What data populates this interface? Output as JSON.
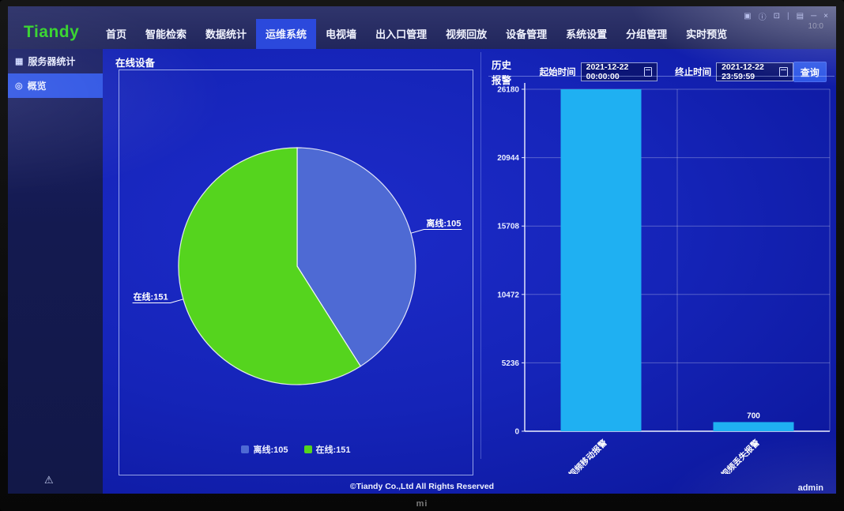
{
  "brand": {
    "name": "Tiandy",
    "logo_color": "#35d42c"
  },
  "nav": {
    "items": [
      {
        "label": "首页",
        "active": false
      },
      {
        "label": "智能检索",
        "active": false
      },
      {
        "label": "数据统计",
        "active": false
      },
      {
        "label": "运维系统",
        "active": true
      },
      {
        "label": "电视墙",
        "active": false
      },
      {
        "label": "出入口管理",
        "active": false
      },
      {
        "label": "视频回放",
        "active": false
      },
      {
        "label": "设备管理",
        "active": false
      },
      {
        "label": "系统设置",
        "active": false
      },
      {
        "label": "分组管理",
        "active": false
      },
      {
        "label": "实时预览",
        "active": false
      }
    ]
  },
  "system_tray": {
    "icons": [
      "display-icon",
      "info-icon",
      "fullscreen-icon",
      "separator",
      "lock-icon",
      "minimize-icon",
      "close-icon"
    ],
    "time": "10:0"
  },
  "sidebar": {
    "items": [
      {
        "label": "服务器统计",
        "icon": "server-stats-icon",
        "active": false
      },
      {
        "label": "概览",
        "icon": "overview-icon",
        "active": true
      }
    ]
  },
  "panels": {
    "online_devices": {
      "title": "在线设备"
    },
    "history_alarm": {
      "title": "历史报警",
      "start_time_label": "起始时间",
      "start_time_value": "2021-12-22 00:00:00",
      "end_time_label": "终止时间",
      "end_time_value": "2021-12-22 23:59:59",
      "query_button": "查询"
    }
  },
  "chart_data": [
    {
      "type": "pie",
      "title": "在线设备",
      "series": [
        {
          "name": "离线",
          "value": 105,
          "color": "#4e6ad4"
        },
        {
          "name": "在线",
          "value": 151,
          "color": "#55d41e"
        }
      ],
      "labels": [
        "离线:105",
        "在线:151"
      ],
      "legend": [
        "离线:105",
        "在线:151"
      ],
      "legend_position": "bottom",
      "start_angle": 90,
      "clockwise": true
    },
    {
      "type": "bar",
      "title": "历史报警",
      "categories": [
        "视频移动报警",
        "视频丢失报警"
      ],
      "values": [
        26180,
        700
      ],
      "value_labels": [
        "",
        "700"
      ],
      "bar_color": "#1fb0f2",
      "ylim": [
        0,
        26180
      ],
      "yticks": [
        0,
        5236,
        10472,
        15708,
        20944,
        26180
      ],
      "grid": true,
      "x_label_rotation": -45
    }
  ],
  "footer": {
    "copyright": "©Tiandy Co.,Ltd All Rights Reserved",
    "user": "admin"
  },
  "bezel": {
    "brand_logo": "mi"
  }
}
